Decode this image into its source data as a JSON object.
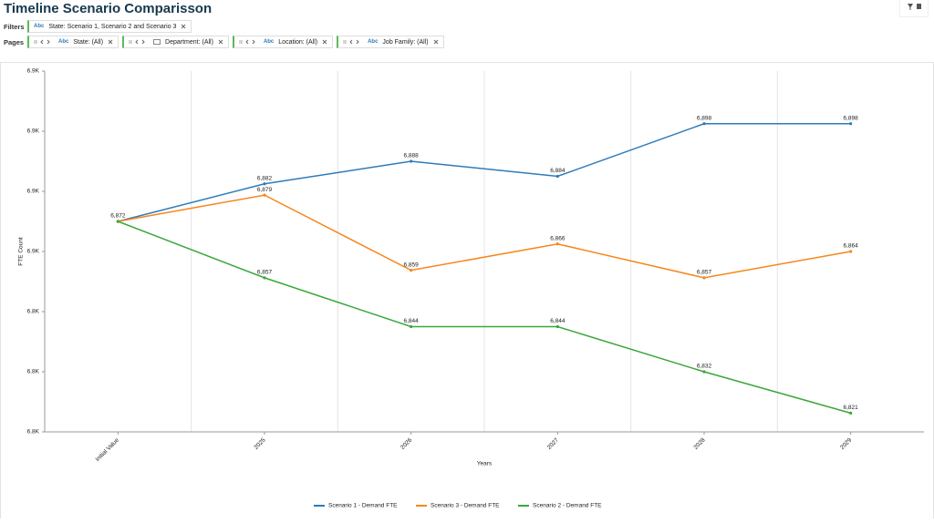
{
  "ui": {
    "title": "Timeline Scenario Comparisson",
    "filters": {
      "label": "Filters",
      "pills": [
        {
          "badge": "Abc",
          "text": "State: Scenario 1, Scenario 2 and Scenario 3"
        }
      ]
    },
    "pages": {
      "label": "Pages",
      "pills": [
        {
          "badge": "Abc",
          "text": "State: (All)"
        },
        {
          "text": "Department: (All)"
        },
        {
          "badge": "Abc",
          "text": "Location: (All)"
        },
        {
          "badge": "Abc",
          "text": "Job Family: (All)"
        }
      ]
    }
  },
  "chart_data": {
    "type": "line",
    "x_label": "Years",
    "y_label": "FTE Count",
    "categories": [
      "Initial Value",
      "2025",
      "2026",
      "2027",
      "2028",
      "2029"
    ],
    "series": [
      {
        "name": "Scenario 1 - Demand FTE",
        "color": "#2e7bb8",
        "values": [
          6872,
          6882,
          6888,
          6884,
          6898,
          6898
        ],
        "value_labels": [
          "6,872",
          "6,882",
          "6,888",
          "6,884",
          "6,898",
          "6,898"
        ]
      },
      {
        "name": "Scenario 3 - Demand FTE",
        "color": "#f7861c",
        "values": [
          6872,
          6879,
          6859,
          6866,
          6857,
          6864
        ],
        "value_labels": [
          null,
          "6,879",
          "6,859",
          "6,866",
          "6,857",
          "6,864"
        ]
      },
      {
        "name": "Scenario 2 - Demand FTE",
        "color": "#3aa83a",
        "values": [
          6872,
          6857,
          6844,
          6844,
          6832,
          6821
        ],
        "value_labels": [
          null,
          "6,857",
          "6,844",
          "6,844",
          "6,832",
          "6,821"
        ]
      }
    ],
    "ylim": [
      6816,
      6912
    ],
    "yticks": [
      {
        "value": 6816,
        "label": "6.8K"
      },
      {
        "value": 6832,
        "label": "6.8K"
      },
      {
        "value": 6848,
        "label": "6.8K"
      },
      {
        "value": 6864,
        "label": "6.9K"
      },
      {
        "value": 6880,
        "label": "6.9K"
      },
      {
        "value": 6896,
        "label": "6.9K"
      },
      {
        "value": 6912,
        "label": "6.9K"
      }
    ],
    "legend": "bottom"
  }
}
